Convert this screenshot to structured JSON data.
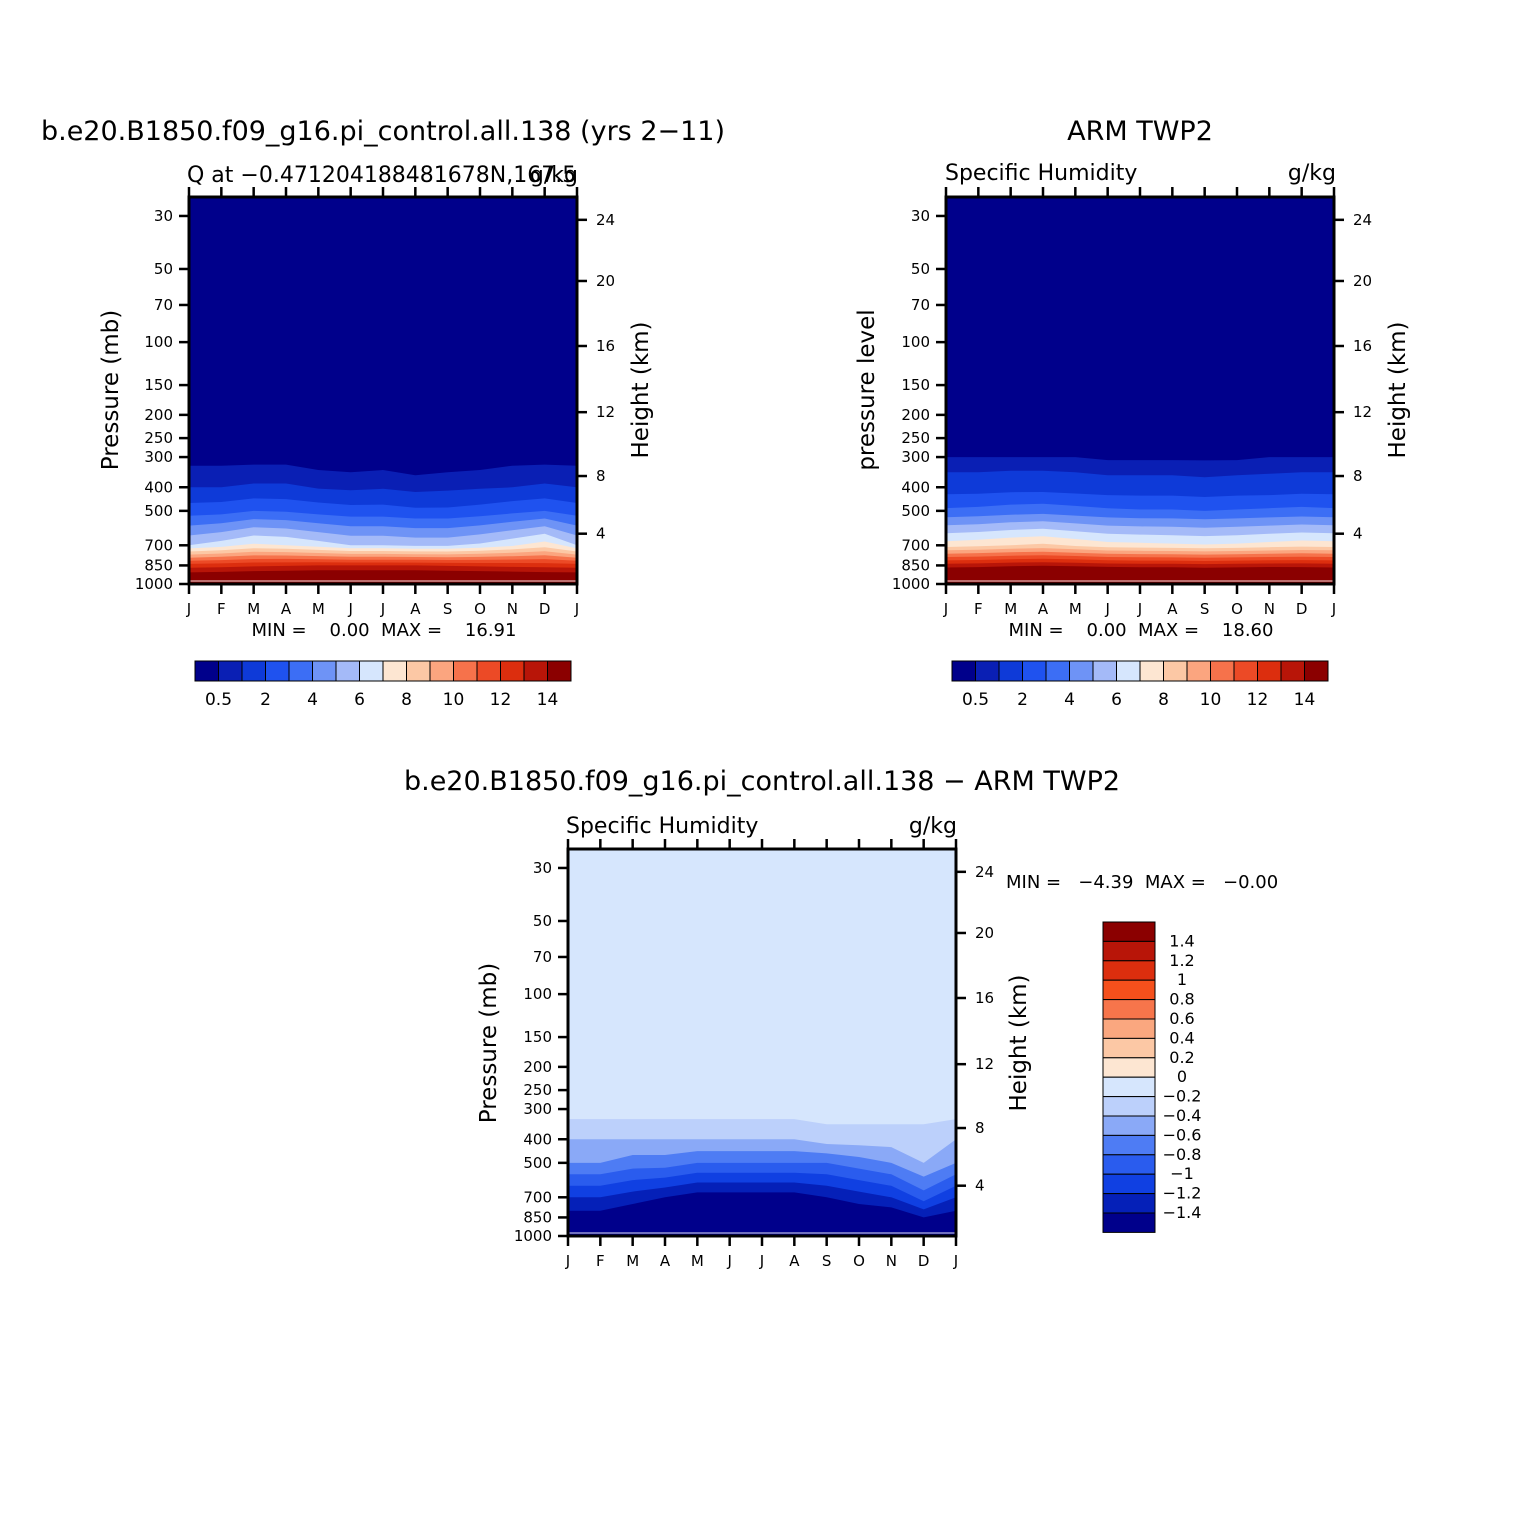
{
  "colors": {
    "abs_palette": [
      "#00008b",
      "#0a1fb4",
      "#0e3ad8",
      "#1f52ef",
      "#3c6ef5",
      "#6e93f6",
      "#a4baf8",
      "#d6e6fd",
      "#fde6d2",
      "#fcc8a5",
      "#fba57f",
      "#f6724b",
      "#ec4a26",
      "#dc2e0e",
      "#b81508",
      "#8b0000"
    ],
    "diff_palette": [
      "#8b0000",
      "#b81508",
      "#dc2e0e",
      "#f5501c",
      "#f7754b",
      "#faa77f",
      "#fcc8a5",
      "#fde6d2",
      "#d6e6fd",
      "#bcd0fb",
      "#8aa9f7",
      "#4e7cf4",
      "#2a5cee",
      "#1040e2",
      "#0520b8",
      "#00008b"
    ]
  },
  "axes": {
    "month_ticks": [
      "J",
      "F",
      "M",
      "A",
      "M",
      "J",
      "J",
      "A",
      "S",
      "O",
      "N",
      "D",
      "J"
    ],
    "pressure_ticks": [
      "30",
      "50",
      "70",
      "100",
      "150",
      "200",
      "250",
      "300",
      "400",
      "500",
      "700",
      "850",
      "1000"
    ],
    "height_ticks": [
      "24",
      "20",
      "16",
      "12",
      "8",
      "4"
    ],
    "height_label": "Height (km)",
    "pressure_label": "Pressure (mb)",
    "pressure_label_obs": "pressure level"
  },
  "panels": {
    "model": {
      "title": "b.e20.B1850.f09_g16.pi_control.all.138 (yrs 2−11)",
      "left_label": "Q at −0.471204188481678N,167.5",
      "right_label": "g/kg",
      "stats": "MIN =    0.00  MAX =    16.91",
      "colorbar_labels": [
        "0.5",
        "2",
        "4",
        "6",
        "8",
        "10",
        "12",
        "14"
      ]
    },
    "obs": {
      "title": "ARM TWP2",
      "left_label": "Specific Humidity",
      "right_label": "g/kg",
      "stats": "MIN =    0.00  MAX =    18.60",
      "colorbar_labels": [
        "0.5",
        "2",
        "4",
        "6",
        "8",
        "10",
        "12",
        "14"
      ]
    },
    "diff": {
      "title": "b.e20.B1850.f09_g16.pi_control.all.138 − ARM TWP2",
      "left_label": "Specific Humidity",
      "right_label": "g/kg",
      "stats": "MIN =   −4.39  MAX =   −0.00",
      "colorbar_labels": [
        "1.4",
        "1.2",
        "1",
        "0.8",
        "0.6",
        "0.4",
        "0.2",
        "0",
        "−0.2",
        "−0.4",
        "−0.6",
        "−0.8",
        "−1",
        "−1.2",
        "−1.4"
      ]
    }
  },
  "chart_data": [
    {
      "type": "heatmap",
      "title": "b.e20.B1850.f09_g16.pi_control.all.138 (yrs 2−11)",
      "subtitle": "Q at −0.471204188481678N,167.5",
      "units": "g/kg",
      "xlabel": "",
      "ylabel": "Pressure (mb)",
      "ylabel_right": "Height (km)",
      "x": [
        "J",
        "F",
        "M",
        "A",
        "M",
        "J",
        "J",
        "A",
        "S",
        "O",
        "N",
        "D",
        "J"
      ],
      "y_pressure": [
        1000,
        850,
        700,
        500,
        400,
        300
      ],
      "z_approx_gkg": [
        [
          16.5,
          16.6,
          16.7,
          16.7,
          16.8,
          16.9,
          16.9,
          16.9,
          16.8,
          16.7,
          16.6,
          16.5,
          16.5
        ],
        [
          12.5,
          12.6,
          12.8,
          12.9,
          13.0,
          13.0,
          13.0,
          13.0,
          12.9,
          12.8,
          12.7,
          12.6,
          12.5
        ],
        [
          6.0,
          6.5,
          7.2,
          7.0,
          6.5,
          6.0,
          6.0,
          5.8,
          5.8,
          6.2,
          6.8,
          7.5,
          6.0
        ],
        [
          2.5,
          2.6,
          3.0,
          2.9,
          2.6,
          2.4,
          2.4,
          2.2,
          2.2,
          2.4,
          2.7,
          3.0,
          2.5
        ],
        [
          1.0,
          1.0,
          1.1,
          1.1,
          0.9,
          0.8,
          0.9,
          0.7,
          0.8,
          0.9,
          1.0,
          1.1,
          1.0
        ],
        [
          0.3,
          0.3,
          0.3,
          0.3,
          0.2,
          0.2,
          0.2,
          0.2,
          0.2,
          0.2,
          0.3,
          0.3,
          0.3
        ]
      ],
      "colorbar_levels": [
        0.5,
        1,
        2,
        3,
        4,
        5,
        6,
        7,
        8,
        9,
        10,
        11,
        12,
        13,
        14
      ],
      "min": 0.0,
      "max": 16.91
    },
    {
      "type": "heatmap",
      "title": "ARM TWP2",
      "subtitle": "Specific Humidity",
      "units": "g/kg",
      "xlabel": "",
      "ylabel": "pressure level",
      "ylabel_right": "Height (km)",
      "x": [
        "J",
        "F",
        "M",
        "A",
        "M",
        "J",
        "J",
        "A",
        "S",
        "O",
        "N",
        "D",
        "J"
      ],
      "y_pressure": [
        1000,
        850,
        700,
        500,
        400,
        300
      ],
      "z_approx_gkg": [
        [
          18.0,
          18.1,
          18.3,
          18.4,
          18.5,
          18.6,
          18.6,
          18.5,
          18.4,
          18.3,
          18.2,
          18.1,
          18.0
        ],
        [
          13.5,
          13.6,
          13.8,
          13.9,
          13.8,
          13.6,
          13.5,
          13.5,
          13.4,
          13.5,
          13.6,
          13.6,
          13.5
        ],
        [
          7.5,
          7.7,
          8.0,
          8.2,
          7.8,
          7.4,
          7.3,
          7.2,
          7.1,
          7.2,
          7.4,
          7.6,
          7.5
        ],
        [
          3.2,
          3.3,
          3.5,
          3.6,
          3.4,
          3.2,
          3.1,
          3.1,
          3.0,
          3.1,
          3.2,
          3.3,
          3.2
        ],
        [
          1.5,
          1.5,
          1.6,
          1.6,
          1.5,
          1.4,
          1.4,
          1.4,
          1.3,
          1.4,
          1.4,
          1.5,
          1.5
        ],
        [
          0.5,
          0.5,
          0.5,
          0.5,
          0.5,
          0.4,
          0.4,
          0.4,
          0.4,
          0.4,
          0.5,
          0.5,
          0.5
        ]
      ],
      "colorbar_levels": [
        0.5,
        1,
        2,
        3,
        4,
        5,
        6,
        7,
        8,
        9,
        10,
        11,
        12,
        13,
        14
      ],
      "min": 0.0,
      "max": 18.6
    },
    {
      "type": "heatmap",
      "title": "b.e20.B1850.f09_g16.pi_control.all.138 − ARM TWP2",
      "subtitle": "Specific Humidity",
      "units": "g/kg",
      "xlabel": "",
      "ylabel": "Pressure (mb)",
      "ylabel_right": "Height (km)",
      "x": [
        "J",
        "F",
        "M",
        "A",
        "M",
        "J",
        "J",
        "A",
        "S",
        "O",
        "N",
        "D",
        "J"
      ],
      "y_pressure": [
        1000,
        850,
        700,
        500,
        400,
        300
      ],
      "z_approx_gkg": [
        [
          -1.6,
          -1.6,
          -1.6,
          -1.6,
          -1.7,
          -1.7,
          -1.7,
          -1.6,
          -1.6,
          -1.6,
          -1.6,
          -1.6,
          -1.6
        ],
        [
          -1.5,
          -1.5,
          -1.6,
          -1.6,
          -1.7,
          -1.8,
          -1.8,
          -1.7,
          -1.7,
          -1.6,
          -1.6,
          -1.4,
          -1.5
        ],
        [
          -1.2,
          -1.2,
          -1.3,
          -1.4,
          -1.5,
          -1.5,
          -1.5,
          -1.5,
          -1.4,
          -1.3,
          -1.2,
          -0.9,
          -1.2
        ],
        [
          -0.6,
          -0.6,
          -0.7,
          -0.7,
          -0.8,
          -0.8,
          -0.8,
          -0.8,
          -0.8,
          -0.7,
          -0.6,
          -0.4,
          -0.6
        ],
        [
          -0.4,
          -0.4,
          -0.4,
          -0.4,
          -0.4,
          -0.4,
          -0.4,
          -0.4,
          -0.3,
          -0.3,
          -0.3,
          -0.3,
          -0.4
        ],
        [
          -0.1,
          -0.1,
          -0.1,
          -0.1,
          -0.1,
          -0.1,
          -0.1,
          -0.1,
          -0.1,
          -0.1,
          -0.1,
          -0.1,
          -0.1
        ]
      ],
      "colorbar_levels": [
        -1.4,
        -1.2,
        -1,
        -0.8,
        -0.6,
        -0.4,
        -0.2,
        0,
        0.2,
        0.4,
        0.6,
        0.8,
        1,
        1.2,
        1.4
      ],
      "min": -4.39,
      "max": -0.0
    }
  ]
}
